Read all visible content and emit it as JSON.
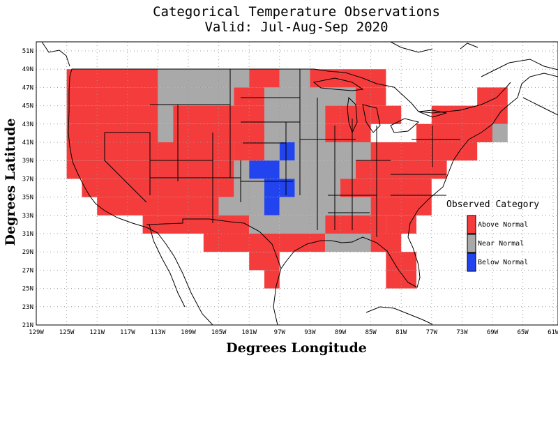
{
  "title": {
    "line1": "Categorical Temperature Observations",
    "line2": "Valid: Jul-Aug-Sep 2020"
  },
  "axes": {
    "xlabel": "Degrees Longitude",
    "ylabel": "Degrees Latitude",
    "x_ticks": [
      "129W",
      "125W",
      "121W",
      "117W",
      "113W",
      "109W",
      "105W",
      "101W",
      "97W",
      "93W",
      "89W",
      "85W",
      "81W",
      "77W",
      "73W",
      "69W",
      "65W",
      "61W"
    ],
    "y_ticks": [
      "51N",
      "49N",
      "47N",
      "45N",
      "43N",
      "41N",
      "39N",
      "37N",
      "35N",
      "33N",
      "31N",
      "29N",
      "27N",
      "25N",
      "23N",
      "21N"
    ],
    "x_range": [
      -129,
      -61
    ],
    "y_range": [
      21,
      52
    ]
  },
  "legend": {
    "title": "Observed Category",
    "position": "right",
    "items": [
      {
        "label": "Above Normal",
        "color": "#f53c3c"
      },
      {
        "label": "Near Normal",
        "color": "#a9a9a9"
      },
      {
        "label": "Below Normal",
        "color": "#2244ee"
      }
    ]
  },
  "grid": "dotted",
  "chart_data": {
    "type": "heatmap",
    "cell_size_deg": 2,
    "categories": {
      "A": "Above Normal",
      "N": "Near Normal",
      "B": "Below Normal"
    },
    "rows": [
      {
        "lat": 48,
        "cells": [
          [
            -125,
            -113,
            "A"
          ],
          [
            -113,
            -101,
            "N"
          ],
          [
            -101,
            -97,
            "A"
          ],
          [
            -97,
            -93,
            "N"
          ],
          [
            -93,
            -83,
            "A"
          ]
        ]
      },
      {
        "lat": 46,
        "cells": [
          [
            -125,
            -113,
            "A"
          ],
          [
            -113,
            -103,
            "N"
          ],
          [
            -103,
            -99,
            "A"
          ],
          [
            -99,
            -87,
            "N"
          ],
          [
            -87,
            -83,
            "A"
          ],
          [
            -71,
            -67,
            "A"
          ]
        ]
      },
      {
        "lat": 44,
        "cells": [
          [
            -125,
            -113,
            "A"
          ],
          [
            -113,
            -111,
            "N"
          ],
          [
            -111,
            -99,
            "A"
          ],
          [
            -99,
            -91,
            "N"
          ],
          [
            -91,
            -85,
            "A"
          ],
          [
            -85,
            -81,
            "A"
          ],
          [
            -77,
            -67,
            "A"
          ]
        ]
      },
      {
        "lat": 42,
        "cells": [
          [
            -125,
            -113,
            "A"
          ],
          [
            -113,
            -111,
            "N"
          ],
          [
            -111,
            -99,
            "A"
          ],
          [
            -99,
            -91,
            "N"
          ],
          [
            -91,
            -85,
            "A"
          ],
          [
            -79,
            -69,
            "A"
          ],
          [
            -69,
            -67,
            "N"
          ]
        ]
      },
      {
        "lat": 40,
        "cells": [
          [
            -125,
            -103,
            "A"
          ],
          [
            -103,
            -99,
            "A"
          ],
          [
            -99,
            -97,
            "N"
          ],
          [
            -97,
            -95,
            "B"
          ],
          [
            -95,
            -89,
            "N"
          ],
          [
            -89,
            -85,
            "N"
          ],
          [
            -85,
            -71,
            "A"
          ]
        ]
      },
      {
        "lat": 38,
        "cells": [
          [
            -125,
            -103,
            "A"
          ],
          [
            -103,
            -101,
            "N"
          ],
          [
            -101,
            -97,
            "B"
          ],
          [
            -97,
            -87,
            "N"
          ],
          [
            -87,
            -75,
            "A"
          ]
        ]
      },
      {
        "lat": 36,
        "cells": [
          [
            -123,
            -103,
            "A"
          ],
          [
            -103,
            -99,
            "N"
          ],
          [
            -99,
            -95,
            "B"
          ],
          [
            -95,
            -89,
            "N"
          ],
          [
            -89,
            -77,
            "A"
          ]
        ]
      },
      {
        "lat": 34,
        "cells": [
          [
            -121,
            -105,
            "A"
          ],
          [
            -105,
            -99,
            "N"
          ],
          [
            -99,
            -97,
            "B"
          ],
          [
            -97,
            -89,
            "N"
          ],
          [
            -89,
            -85,
            "N"
          ],
          [
            -85,
            -77,
            "A"
          ]
        ]
      },
      {
        "lat": 32,
        "cells": [
          [
            -115,
            -101,
            "A"
          ],
          [
            -101,
            -97,
            "N"
          ],
          [
            -97,
            -91,
            "N"
          ],
          [
            -91,
            -83,
            "A"
          ],
          [
            -83,
            -79,
            "A"
          ]
        ]
      },
      {
        "lat": 30,
        "cells": [
          [
            -107,
            -91,
            "A"
          ],
          [
            -91,
            -85,
            "N"
          ],
          [
            -85,
            -81,
            "A"
          ]
        ]
      },
      {
        "lat": 28,
        "cells": [
          [
            -101,
            -97,
            "A"
          ],
          [
            -83,
            -79,
            "A"
          ]
        ]
      },
      {
        "lat": 26,
        "cells": [
          [
            -99,
            -97,
            "A"
          ],
          [
            -83,
            -79,
            "A"
          ]
        ]
      }
    ]
  }
}
